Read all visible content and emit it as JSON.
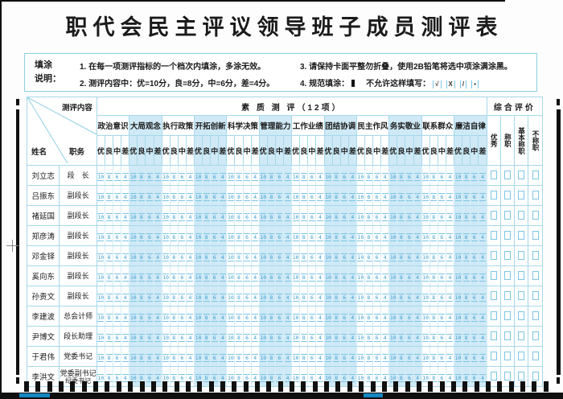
{
  "title": "职代会民主评议领导班子成员测评表",
  "instructions": {
    "label": "填涂\n说明：",
    "items": [
      "1. 在每一项测评指标的一个档次内填涂，多涂无效。",
      "2. 测评内容中：优=10分，良=8分，中=6分，差=4分。",
      "3. 请保持卡面平整勿折叠，使用2B铅笔将选中项涂满涂黑。",
      "4. 规范填涂："
    ],
    "item4_suffix": "不允许这样填写：",
    "invalid_marks": [
      "√",
      "X",
      "/",
      "▪"
    ]
  },
  "table": {
    "corner_top": "测评内容",
    "corner_name": "姓名",
    "corner_pos": "职务",
    "section_header": "素 质 测 评（12项）",
    "eval_header": "综合评价",
    "groups": [
      "政治意识",
      "大局观念",
      "执行政策",
      "开拓创新",
      "科学决策",
      "管理能力",
      "工作业绩",
      "团结协调",
      "民主作风",
      "务实敬业",
      "联系群众",
      "廉洁自律"
    ],
    "grades": [
      "优",
      "良",
      "中",
      "差"
    ],
    "scores": [
      "10",
      "8",
      "6",
      "4"
    ],
    "eval_options": [
      "优秀",
      "称职",
      "基本称职",
      "不称职"
    ],
    "rows": [
      {
        "name": "刘立志",
        "position": "段　长"
      },
      {
        "name": "吕振东",
        "position": "副段长"
      },
      {
        "name": "褚延国",
        "position": "副段长"
      },
      {
        "name": "郑彦涛",
        "position": "副段长"
      },
      {
        "name": "邓金铎",
        "position": "副段长"
      },
      {
        "name": "奚向东",
        "position": "副段长"
      },
      {
        "name": "孙贵文",
        "position": "副段长"
      },
      {
        "name": "李建波",
        "position": "总会计师"
      },
      {
        "name": "尹博文",
        "position": "段长助理"
      },
      {
        "name": "于君伟",
        "position": "党委书记"
      },
      {
        "name": "李洪文",
        "position": "党委副书记",
        "position2": "纪委书记"
      }
    ]
  },
  "colors": {
    "accent_blue": "#3d9fd2",
    "shade_blue": "#cfe9f6",
    "grid_blue": "#a6d8ea",
    "mark_black": "#101010"
  }
}
